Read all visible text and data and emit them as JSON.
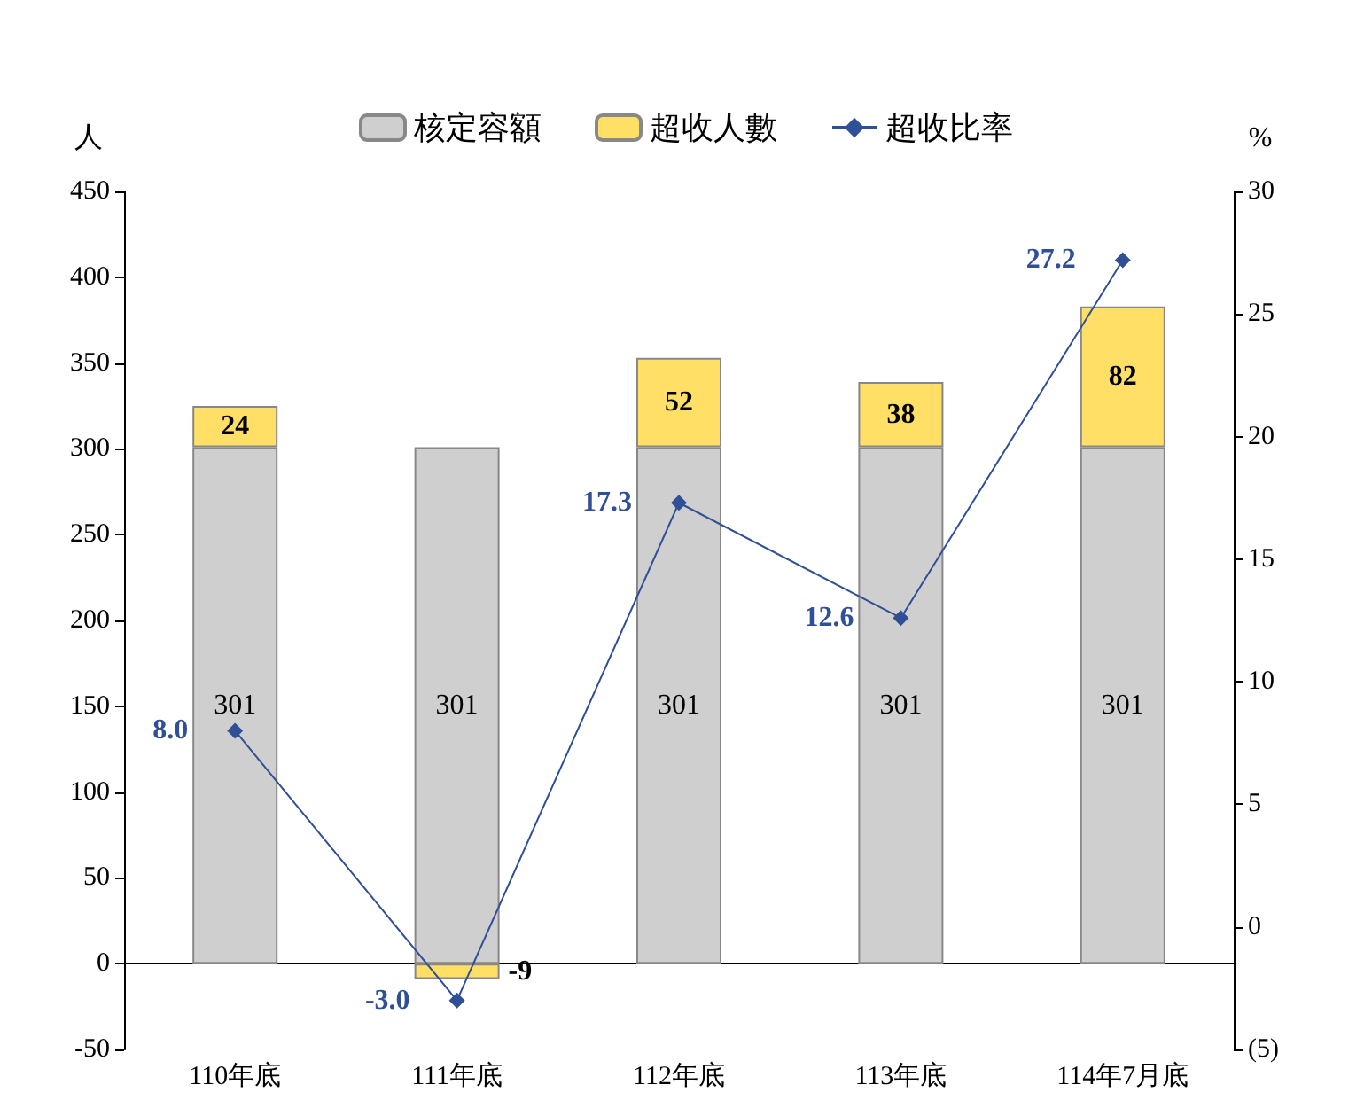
{
  "chart_data": {
    "type": "bar",
    "stacked": true,
    "ylabel": "人",
    "y2label": "%",
    "categories": [
      "110年底",
      "111年底",
      "112年底",
      "113年底",
      "114年7月底"
    ],
    "series": [
      {
        "name": "核定容額",
        "color": "#cfcfcf",
        "values": [
          301,
          301,
          301,
          301,
          301
        ],
        "value_labels": [
          "301",
          "301",
          "301",
          "301",
          "301"
        ]
      },
      {
        "name": "超收人數",
        "color": "#ffdf66",
        "values": [
          24,
          -9,
          52,
          38,
          82
        ],
        "value_labels": [
          "24",
          "-9",
          "52",
          "38",
          "82"
        ]
      },
      {
        "name": "超收比率",
        "type": "line",
        "axis": "y2",
        "color": "#2f4f96",
        "marker": "diamond",
        "values": [
          8.0,
          -3.0,
          17.3,
          12.6,
          27.2
        ],
        "value_labels": [
          "8.0",
          "-3.0",
          "17.3",
          "12.6",
          "27.2"
        ]
      }
    ],
    "ylim": [
      -50,
      450
    ],
    "yticks": [
      -50,
      0,
      50,
      100,
      150,
      200,
      250,
      300,
      350,
      400,
      450
    ],
    "y2lim": [
      -5,
      30
    ],
    "y2ticks": [
      {
        "value": -5,
        "label": "(5)"
      },
      0,
      5,
      10,
      15,
      20,
      25,
      30
    ],
    "legend": "top"
  }
}
